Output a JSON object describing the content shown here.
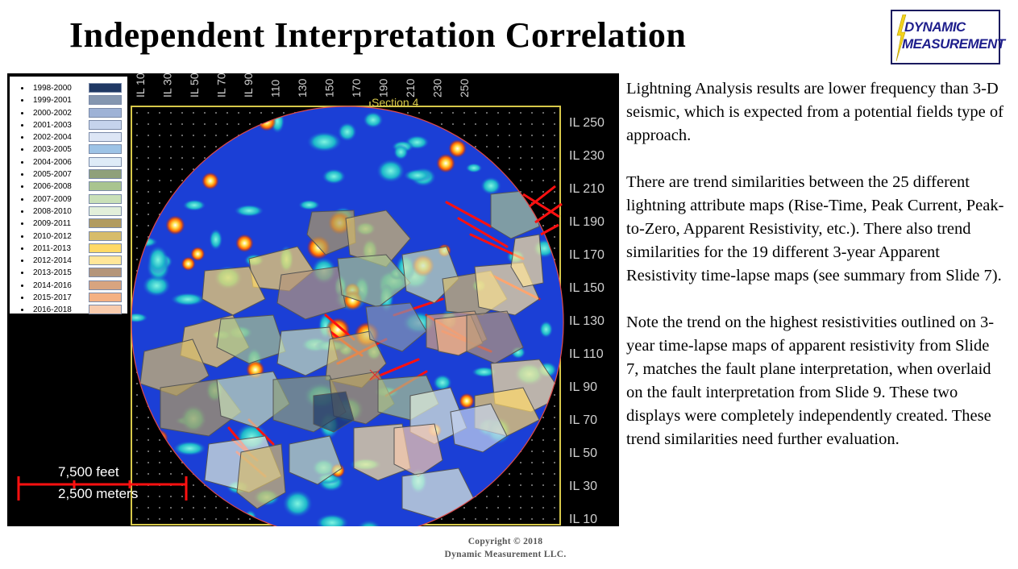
{
  "title": "Independent Interpretation Correlation",
  "logo": {
    "line1": "DYNAMIC",
    "line2": "MEASUREMENT",
    "icon": "lightning-bolt-icon"
  },
  "map": {
    "section_label": "Section 4",
    "top_axis_labels": [
      "IL 10",
      "IL 30",
      "IL 50",
      "IL 70",
      "IL 90",
      "110",
      "130",
      "150",
      "170",
      "190",
      "210",
      "230",
      "250"
    ],
    "right_axis_labels": [
      "IL 250",
      "IL 230",
      "IL 210",
      "IL 190",
      "IL 170",
      "IL 150",
      "IL 130",
      "IL 110",
      "IL 90",
      "IL 70",
      "IL 50",
      "IL 30",
      "IL 10"
    ],
    "scale_bar": {
      "feet": "7,500 feet",
      "meters": "2,500 meters"
    }
  },
  "legend": [
    {
      "label": "1998-2000",
      "color": "#1f3864"
    },
    {
      "label": "1999-2001",
      "color": "#8496b0"
    },
    {
      "label": "2000-2002",
      "color": "#9eb2d6"
    },
    {
      "label": "2001-2003",
      "color": "#c5d3ec"
    },
    {
      "label": "2002-2004",
      "color": "#dde6f5"
    },
    {
      "label": "2003-2005",
      "color": "#9dc3e6"
    },
    {
      "label": "2004-2006",
      "color": "#deebf7"
    },
    {
      "label": "2005-2007",
      "color": "#8fa07a"
    },
    {
      "label": "2006-2008",
      "color": "#a9c48f"
    },
    {
      "label": "2007-2009",
      "color": "#c9e0b8"
    },
    {
      "label": "2008-2010",
      "color": "#e2efda"
    },
    {
      "label": "2009-2011",
      "color": "#b19b5f"
    },
    {
      "label": "2010-2012",
      "color": "#d7bc6a"
    },
    {
      "label": "2011-2013",
      "color": "#ffd966"
    },
    {
      "label": "2012-2014",
      "color": "#ffe699"
    },
    {
      "label": "2013-2015",
      "color": "#b4957a"
    },
    {
      "label": "2014-2016",
      "color": "#d8a47f"
    },
    {
      "label": "2015-2017",
      "color": "#f4b183"
    },
    {
      "label": "2016-2018",
      "color": "#f8cbad"
    }
  ],
  "paragraphs": [
    "Lightning Analysis results are lower frequency than 3-D seismic, which is expected from a potential fields type of approach.",
    "There are trend similarities  between the 25 different lightning  attribute maps (Rise-Time, Peak Current, Peak-to-Zero, Apparent Resistivity, etc.). There also trend similarities for the 19 different 3-year Apparent Resistivity time-lapse maps (see summary  from Slide  7).",
    "Note the trend on the highest resistivities outlined on 3-year time-lapse maps of apparent resistivity  from Slide  7, matches the fault plane interpretation, when overlaid on the fault interpretation from Slide  9. These two displays were completely independently created. These trend similarities  need further evaluation."
  ],
  "copyright": {
    "line1": "Copyright © 2018",
    "line2": "Dynamic  Measurement  LLC."
  }
}
